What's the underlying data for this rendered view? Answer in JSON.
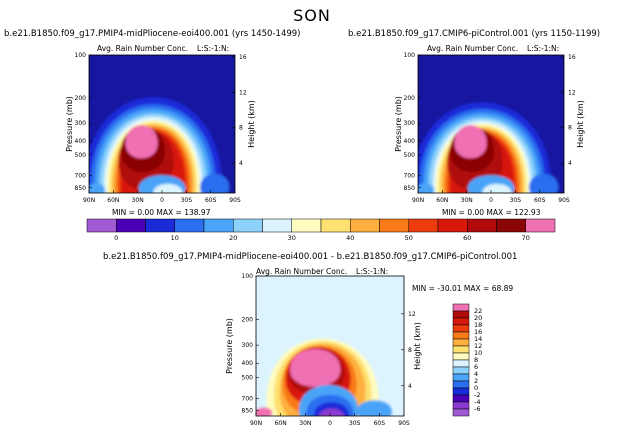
{
  "figure_title": "SON",
  "panels": [
    {
      "title": "b.e21.B1850.f09_g17.PMIP4-midPliocene-eoi400.001 (yrs 1450-1499)",
      "subtitle": "Avg. Rain Number Conc.",
      "units_label": "L:S:-1:N:",
      "stats": "MIN =    0.00   MAX =  138.97"
    },
    {
      "title": "b.e21.B1850.f09_g17.CMIP6-piControl.001 (yrs 1150-1199)",
      "subtitle": "Avg. Rain Number Conc.",
      "units_label": "L:S:-1:N:",
      "stats": "MIN =    0.00   MAX =  122.93"
    },
    {
      "title": "b.e21.B1850.f09_g17.PMIP4-midPliocene-eoi400.001 - b.e21.B1850.f09_g17.CMIP6-piControl.001",
      "subtitle": "Avg. Rain Number Conc.",
      "units_label": "L:S:-1:N:",
      "stats": "MIN = -30.01   MAX =   68.89"
    }
  ],
  "chart_data": [
    {
      "type": "heatmap",
      "title": "b.e21.B1850.f09_g17.PMIP4-midPliocene-eoi400.001 (yrs 1450-1499)",
      "ylabel": "Pressure (mb)",
      "y2label": "Height (km)",
      "x_ticks": [
        "90N",
        "60N",
        "30N",
        "0",
        "30S",
        "60S",
        "90S"
      ],
      "y_ticks": [
        "100",
        "200",
        "300",
        "400",
        "500",
        "700",
        "850"
      ],
      "y2_ticks": [
        "16",
        "12",
        "8",
        "4"
      ],
      "min": 0.0,
      "max": 138.97
    },
    {
      "type": "heatmap",
      "title": "b.e21.B1850.f09_g17.CMIP6-piControl.001 (yrs 1150-1199)",
      "ylabel": "Pressure (mb)",
      "y2label": "Height (km)",
      "x_ticks": [
        "90N",
        "60N",
        "30N",
        "0",
        "30S",
        "60S",
        "90S"
      ],
      "y_ticks": [
        "100",
        "200",
        "300",
        "400",
        "500",
        "700",
        "850"
      ],
      "y2_ticks": [
        "16",
        "12",
        "8",
        "4"
      ],
      "min": 0.0,
      "max": 122.93
    },
    {
      "type": "heatmap",
      "title": "b.e21.B1850.f09_g17.PMIP4-midPliocene-eoi400.001 - b.e21.B1850.f09_g17.CMIP6-piControl.001",
      "ylabel": "Pressure (mb)",
      "y2label": "Height (km)",
      "x_ticks": [
        "90N",
        "60N",
        "30N",
        "0",
        "30S",
        "60S",
        "90S"
      ],
      "y_ticks": [
        "100",
        "200",
        "300",
        "400",
        "500",
        "700",
        "850"
      ],
      "y2_ticks": [
        "12",
        "8",
        "4"
      ],
      "min": -30.01,
      "max": 68.89
    }
  ],
  "colorbars": {
    "top": {
      "labels": [
        "0",
        "10",
        "20",
        "30",
        "40",
        "50",
        "60",
        "70"
      ],
      "colors": [
        "#a05ad2",
        "#4a00b4",
        "#1a2cd8",
        "#2b6ef0",
        "#4aa4f8",
        "#8cd2fa",
        "#dcf4fe",
        "#fffcc0",
        "#fee170",
        "#fdb040",
        "#f97a18",
        "#ec3c0e",
        "#d81808",
        "#b00a0a",
        "#8a0606",
        "#f070b4"
      ]
    },
    "diff": {
      "labels": [
        "22",
        "20",
        "18",
        "16",
        "14",
        "12",
        "10",
        "8",
        "6",
        "4",
        "2",
        "0",
        "-2",
        "-4",
        "-6"
      ],
      "colors": [
        "#f070b4",
        "#b00a0a",
        "#d81808",
        "#ec3c0e",
        "#f97a18",
        "#fdb040",
        "#fee170",
        "#fffcc0",
        "#dcf4fe",
        "#8cd2fa",
        "#4aa4f8",
        "#2b6ef0",
        "#1a2cd8",
        "#4a00b4",
        "#8a3ad0",
        "#a05ad2"
      ]
    }
  }
}
